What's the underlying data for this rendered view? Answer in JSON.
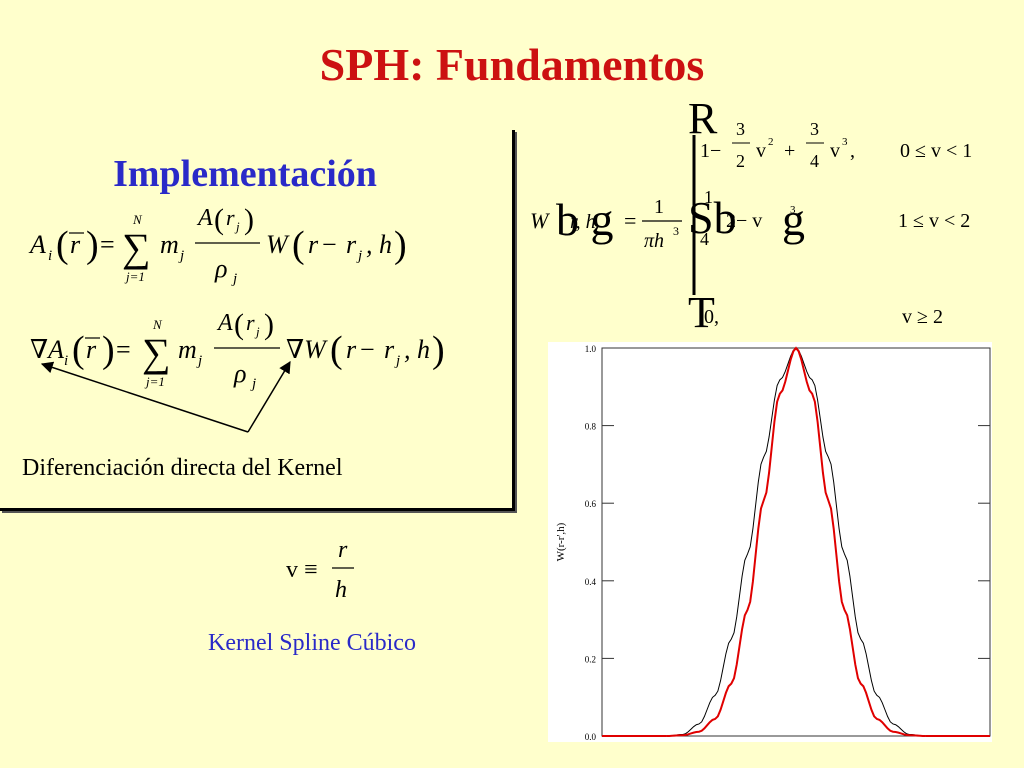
{
  "title": "SPH: Fundamentos",
  "subtitle": "Implementación",
  "equation1": {
    "lhs": "A",
    "lhs_sub": "i",
    "arg": "r",
    "sum_upper": "N",
    "sum_lower": "j=1",
    "mass": "m",
    "mass_sub": "j",
    "num": "A",
    "num_arg_sub": "j",
    "den": "ρ",
    "den_sub": "j",
    "kernel": "W",
    "kernel_h": ", h"
  },
  "equation2": {
    "lhs": "∇A",
    "lhs_sub": "i",
    "arg": "r",
    "sum_upper": "N",
    "sum_lower": "j=1",
    "mass": "m",
    "mass_sub": "j",
    "num": "A",
    "num_arg_sub": "j",
    "den": "ρ",
    "den_sub": "j",
    "kernel": "∇W",
    "kernel_h": ", h"
  },
  "diff_text": "Diferenciación directa del Kernel",
  "v_def": {
    "lhs": "v ≡",
    "num": "r",
    "den": "h"
  },
  "kernel_label": "Kernel Spline Cúbico",
  "kernel_equation": {
    "lhs": "W",
    "lhs_args": "r, h",
    "prefactor_num": "1",
    "prefactor_den": "πh",
    "prefactor_exp": "3",
    "glitch_R": "R",
    "glitch_bg1": "b g",
    "glitch_Sb": "Sb",
    "glitch_g": "g",
    "glitch_T": "T",
    "case1_a": "1−",
    "case1_f1_num": "3",
    "case1_f1_den": "2",
    "case1_v1": "v",
    "case1_e1": "2",
    "case1_plus": "+",
    "case1_f2_num": "3",
    "case1_f2_den": "4",
    "case1_v2": "v",
    "case1_e2": "3",
    "case1_comma": ",",
    "case1_cond": "0 ≤ v < 1",
    "case2_a": "1",
    "case2_b": "2− v",
    "case2_e": "3",
    "case2_d": "4",
    "case2_cond": "1 ≤ v < 2",
    "case3_val": "0,",
    "case3_cond": "v ≥ 2"
  },
  "chart_data": {
    "type": "line",
    "ylabel": "W(r-r',h)",
    "xlabel": "",
    "ylim": [
      0,
      1
    ],
    "xlim": [
      -3,
      3
    ],
    "yticks": [
      "0.0",
      "0.2",
      "0.4",
      "0.6",
      "0.8",
      "1.0"
    ],
    "series": [
      {
        "color": "#000000",
        "x": [
          -2.0,
          -1.75,
          -1.5,
          -1.25,
          -1.0,
          -0.75,
          -0.5,
          -0.25,
          0.0,
          0.25,
          0.5,
          0.75,
          1.0,
          1.25,
          1.5,
          1.75,
          2.0
        ],
        "y": [
          0.0,
          0.004,
          0.031,
          0.105,
          0.25,
          0.469,
          0.719,
          0.918,
          1.0,
          0.918,
          0.719,
          0.469,
          0.25,
          0.105,
          0.031,
          0.004,
          0.0
        ]
      },
      {
        "color": "#E00000",
        "x": [
          -2.0,
          -1.75,
          -1.5,
          -1.25,
          -1.0,
          -0.75,
          -0.5,
          -0.25,
          0.0,
          0.25,
          0.5,
          0.75,
          1.0,
          1.25,
          1.5,
          1.75,
          2.0
        ],
        "y": [
          0.0,
          0.002,
          0.011,
          0.044,
          0.135,
          0.325,
          0.607,
          0.882,
          1.0,
          0.882,
          0.607,
          0.325,
          0.135,
          0.044,
          0.011,
          0.002,
          0.0
        ]
      }
    ]
  }
}
